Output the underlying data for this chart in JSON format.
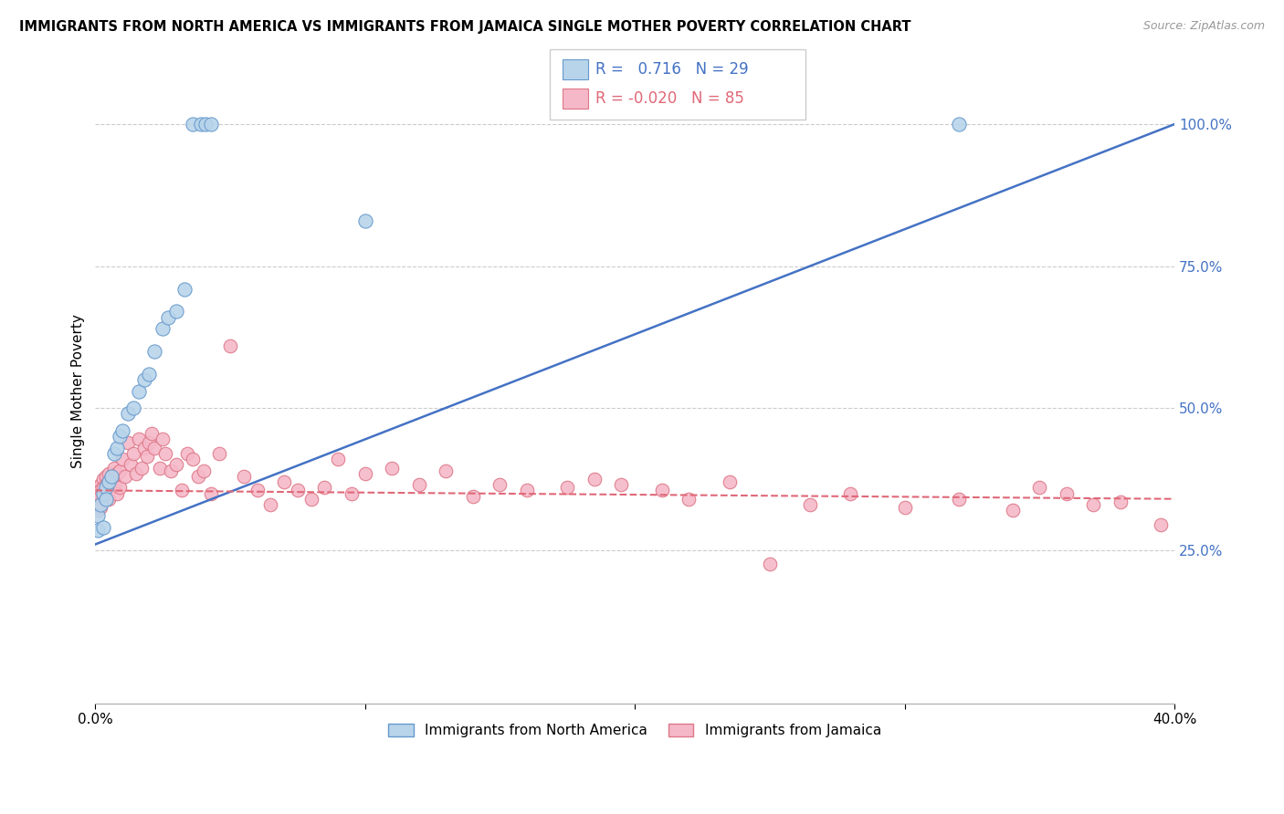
{
  "title": "IMMIGRANTS FROM NORTH AMERICA VS IMMIGRANTS FROM JAMAICA SINGLE MOTHER POVERTY CORRELATION CHART",
  "source": "Source: ZipAtlas.com",
  "ylabel": "Single Mother Poverty",
  "ytick_labels": [
    "25.0%",
    "50.0%",
    "75.0%",
    "100.0%"
  ],
  "ytick_vals": [
    0.25,
    0.5,
    0.75,
    1.0
  ],
  "xlim": [
    0,
    0.4
  ],
  "ylim": [
    -0.02,
    1.08
  ],
  "r_blue": "0.716",
  "n_blue": 29,
  "r_pink": "-0.020",
  "n_pink": 85,
  "legend_label_blue": "Immigrants from North America",
  "legend_label_pink": "Immigrants from Jamaica",
  "blue_color": "#b8d4ea",
  "pink_color": "#f5b8c8",
  "blue_line_color": "#4472c4",
  "pink_line_color": "#e06878",
  "blue_scatter_edge": "#6699cc",
  "pink_scatter_edge": "#dd7788",
  "blue_x": [
    0.001,
    0.001,
    0.002,
    0.003,
    0.003,
    0.004,
    0.004,
    0.005,
    0.006,
    0.007,
    0.008,
    0.009,
    0.01,
    0.012,
    0.014,
    0.016,
    0.018,
    0.02,
    0.022,
    0.025,
    0.027,
    0.03,
    0.033,
    0.036,
    0.039,
    0.041,
    0.043,
    0.1,
    0.32
  ],
  "blue_y": [
    0.285,
    0.31,
    0.33,
    0.29,
    0.35,
    0.36,
    0.34,
    0.37,
    0.38,
    0.42,
    0.43,
    0.45,
    0.46,
    0.49,
    0.5,
    0.53,
    0.55,
    0.56,
    0.6,
    0.64,
    0.66,
    0.67,
    0.71,
    1.0,
    1.0,
    1.0,
    1.0,
    0.83,
    1.0
  ],
  "pink_x": [
    0.001,
    0.001,
    0.001,
    0.001,
    0.001,
    0.002,
    0.002,
    0.002,
    0.002,
    0.003,
    0.003,
    0.003,
    0.004,
    0.004,
    0.004,
    0.005,
    0.005,
    0.005,
    0.006,
    0.006,
    0.007,
    0.007,
    0.008,
    0.008,
    0.009,
    0.009,
    0.01,
    0.011,
    0.012,
    0.013,
    0.014,
    0.015,
    0.016,
    0.017,
    0.018,
    0.019,
    0.02,
    0.021,
    0.022,
    0.024,
    0.025,
    0.026,
    0.028,
    0.03,
    0.032,
    0.034,
    0.036,
    0.038,
    0.04,
    0.043,
    0.046,
    0.05,
    0.055,
    0.06,
    0.065,
    0.07,
    0.075,
    0.08,
    0.085,
    0.09,
    0.095,
    0.1,
    0.11,
    0.12,
    0.13,
    0.14,
    0.15,
    0.16,
    0.175,
    0.185,
    0.195,
    0.21,
    0.22,
    0.235,
    0.25,
    0.265,
    0.28,
    0.3,
    0.32,
    0.34,
    0.35,
    0.36,
    0.37,
    0.38,
    0.395
  ],
  "pink_y": [
    0.36,
    0.35,
    0.34,
    0.33,
    0.32,
    0.365,
    0.355,
    0.345,
    0.325,
    0.375,
    0.36,
    0.345,
    0.38,
    0.365,
    0.345,
    0.385,
    0.37,
    0.34,
    0.38,
    0.36,
    0.395,
    0.365,
    0.385,
    0.35,
    0.39,
    0.36,
    0.41,
    0.38,
    0.44,
    0.4,
    0.42,
    0.385,
    0.445,
    0.395,
    0.43,
    0.415,
    0.44,
    0.455,
    0.43,
    0.395,
    0.445,
    0.42,
    0.39,
    0.4,
    0.355,
    0.42,
    0.41,
    0.38,
    0.39,
    0.35,
    0.42,
    0.61,
    0.38,
    0.355,
    0.33,
    0.37,
    0.355,
    0.34,
    0.36,
    0.41,
    0.35,
    0.385,
    0.395,
    0.365,
    0.39,
    0.345,
    0.365,
    0.355,
    0.36,
    0.375,
    0.365,
    0.355,
    0.34,
    0.37,
    0.225,
    0.33,
    0.35,
    0.325,
    0.34,
    0.32,
    0.36,
    0.35,
    0.33,
    0.335,
    0.295
  ]
}
